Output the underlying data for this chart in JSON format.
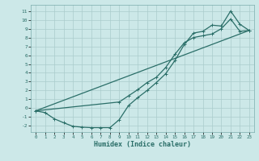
{
  "xlabel": "Humidex (Indice chaleur)",
  "xlim": [
    -0.5,
    23.5
  ],
  "ylim": [
    -2.7,
    11.7
  ],
  "xticks": [
    0,
    1,
    2,
    3,
    4,
    5,
    6,
    7,
    8,
    9,
    10,
    11,
    12,
    13,
    14,
    15,
    16,
    17,
    18,
    19,
    20,
    21,
    22,
    23
  ],
  "yticks": [
    -2,
    -1,
    0,
    1,
    2,
    3,
    4,
    5,
    6,
    7,
    8,
    9,
    10,
    11
  ],
  "bg_color": "#cce8e8",
  "grid_color": "#aacccc",
  "line_color": "#2a6e68",
  "line1_x": [
    0,
    1,
    2,
    3,
    4,
    5,
    6,
    7,
    8,
    9,
    10,
    11,
    12,
    13,
    14,
    15,
    16,
    17,
    18,
    19,
    20,
    21,
    22,
    23
  ],
  "line1_y": [
    -0.3,
    -0.5,
    -1.2,
    -1.65,
    -2.05,
    -2.15,
    -2.2,
    -2.2,
    -2.2,
    -1.3,
    0.3,
    1.2,
    2.0,
    2.9,
    3.9,
    5.4,
    7.2,
    8.5,
    8.7,
    9.4,
    9.3,
    11.0,
    9.5,
    8.8
  ],
  "line2_x": [
    0,
    9,
    10,
    11,
    12,
    13,
    14,
    15,
    16,
    17,
    18,
    19,
    20,
    21,
    22,
    23
  ],
  "line2_y": [
    -0.3,
    0.7,
    1.4,
    2.1,
    2.9,
    3.5,
    4.6,
    6.1,
    7.4,
    8.0,
    8.2,
    8.4,
    9.0,
    10.1,
    8.7,
    8.8
  ],
  "line3_x": [
    0,
    23
  ],
  "line3_y": [
    -0.3,
    8.8
  ]
}
